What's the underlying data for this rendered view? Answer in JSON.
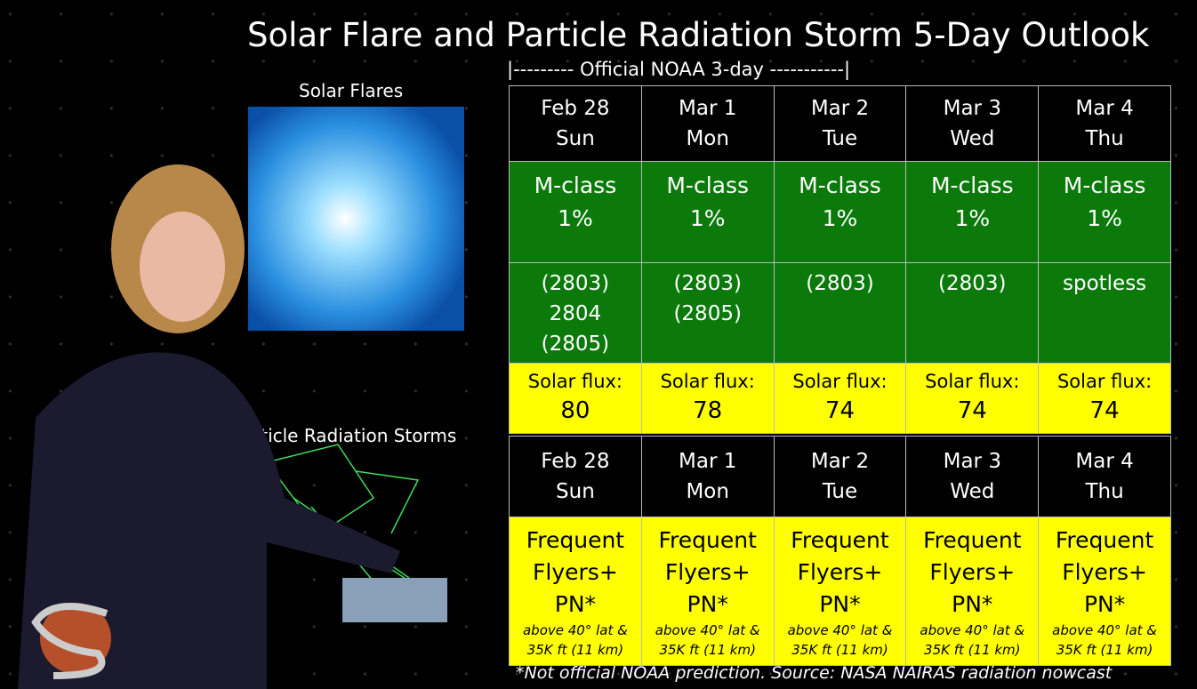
{
  "header": {
    "title": "Solar Flare and Particle Radiation Storm 5-Day Outlook",
    "subtitle": "|--------- Official NOAA 3-day -----------|"
  },
  "panels": {
    "flares_caption": "Solar Flares",
    "radiation_caption": "rticle Radiation Storms"
  },
  "flare_table": {
    "columns": [
      {
        "date": "Feb 28",
        "day": "Sun",
        "flare_class": "M-class",
        "flare_prob": "1%",
        "regions": [
          "(2803)",
          "2804",
          "(2805)"
        ],
        "flux_label": "Solar flux:",
        "flux": 80
      },
      {
        "date": "Mar 1",
        "day": "Mon",
        "flare_class": "M-class",
        "flare_prob": "1%",
        "regions": [
          "(2803)",
          "(2805)"
        ],
        "flux_label": "Solar flux:",
        "flux": 78
      },
      {
        "date": "Mar 2",
        "day": "Tue",
        "flare_class": "M-class",
        "flare_prob": "1%",
        "regions": [
          "(2803)"
        ],
        "flux_label": "Solar flux:",
        "flux": 74
      },
      {
        "date": "Mar 3",
        "day": "Wed",
        "flare_class": "M-class",
        "flare_prob": "1%",
        "regions": [
          "(2803)"
        ],
        "flux_label": "Solar flux:",
        "flux": 74
      },
      {
        "date": "Mar 4",
        "day": "Thu",
        "flare_class": "M-class",
        "flare_prob": "1%",
        "regions": [
          "spotless"
        ],
        "flux_label": "Solar flux:",
        "flux": 74
      }
    ]
  },
  "radiation_table": {
    "columns": [
      {
        "date": "Feb 28",
        "day": "Sun",
        "lines": [
          "Frequent",
          "Flyers+",
          "PN*"
        ],
        "note": [
          "above 40° lat &",
          "35K ft (11 km)"
        ]
      },
      {
        "date": "Mar 1",
        "day": "Mon",
        "lines": [
          "Frequent",
          "Flyers+",
          "PN*"
        ],
        "note": [
          "above 40° lat &",
          "35K ft (11 km)"
        ]
      },
      {
        "date": "Mar 2",
        "day": "Tue",
        "lines": [
          "Frequent",
          "Flyers+",
          "PN*"
        ],
        "note": [
          "above 40° lat &",
          "35K ft (11 km)"
        ]
      },
      {
        "date": "Mar 3",
        "day": "Wed",
        "lines": [
          "Frequent",
          "Flyers+",
          "PN*"
        ],
        "note": [
          "above 40° lat &",
          "35K ft (11 km)"
        ]
      },
      {
        "date": "Mar 4",
        "day": "Thu",
        "lines": [
          "Frequent",
          "Flyers+",
          "PN*"
        ],
        "note": [
          "above 40° lat &",
          "35K ft (11 km)"
        ]
      }
    ]
  },
  "footer": "*Not official NOAA prediction. Source: NASA NAIRAS radiation nowcast"
}
